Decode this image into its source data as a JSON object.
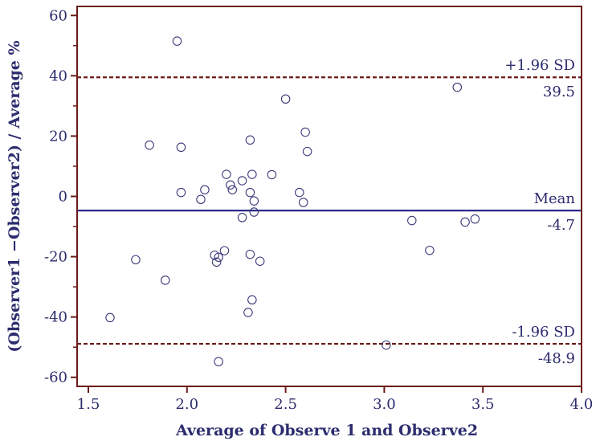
{
  "chart_data": {
    "type": "scatter",
    "title": "",
    "xlabel": "Average of Observe 1 and Observe2",
    "ylabel": "(Observer1 −Observer2)  / Average %",
    "xlim": [
      1.5,
      4.0
    ],
    "ylim": [
      -63,
      63
    ],
    "xticks": [
      "1.5",
      "2.0",
      "2.5",
      "3.0",
      "3.5",
      "4.0"
    ],
    "yticks": [
      "60",
      "40",
      "20",
      "0",
      "-20",
      "-40",
      "-60"
    ],
    "grid": false,
    "legend": "none",
    "colors": {
      "frame": "#6b1a1a",
      "mean_line": "#2a2a8a",
      "sd_line": "#6b1a1a",
      "point": "#3a3a7a",
      "text": "#2c2c6e"
    },
    "lines": [
      {
        "name": "+1.96 SD",
        "value": 39.5,
        "label_top": "+1.96 SD",
        "label_bottom": "39.5",
        "style": "dashed"
      },
      {
        "name": "Mean",
        "value": -4.7,
        "label_top": "Mean",
        "label_bottom": "-4.7",
        "style": "solid"
      },
      {
        "name": "-1.96 SD",
        "value": -48.9,
        "label_top": "-1.96 SD",
        "label_bottom": "-48.9",
        "style": "dashed"
      }
    ],
    "points": [
      {
        "x": 1.95,
        "y": 51.5
      },
      {
        "x": 1.81,
        "y": 17.0
      },
      {
        "x": 1.97,
        "y": 16.3
      },
      {
        "x": 1.97,
        "y": 1.3
      },
      {
        "x": 2.09,
        "y": 2.2
      },
      {
        "x": 2.07,
        "y": -1.0
      },
      {
        "x": 2.2,
        "y": 7.3
      },
      {
        "x": 2.22,
        "y": 3.8
      },
      {
        "x": 2.23,
        "y": 2.2
      },
      {
        "x": 2.28,
        "y": 5.2
      },
      {
        "x": 2.32,
        "y": 18.7
      },
      {
        "x": 2.33,
        "y": 7.3
      },
      {
        "x": 2.32,
        "y": 1.3
      },
      {
        "x": 2.34,
        "y": -1.5
      },
      {
        "x": 2.34,
        "y": -5.2
      },
      {
        "x": 2.28,
        "y": -7.0
      },
      {
        "x": 2.43,
        "y": 7.2
      },
      {
        "x": 2.5,
        "y": 32.3
      },
      {
        "x": 2.6,
        "y": 21.3
      },
      {
        "x": 2.61,
        "y": 14.9
      },
      {
        "x": 2.57,
        "y": 1.3
      },
      {
        "x": 2.59,
        "y": -2.0
      },
      {
        "x": 2.19,
        "y": -18.0
      },
      {
        "x": 2.14,
        "y": -19.5
      },
      {
        "x": 2.16,
        "y": -20.2
      },
      {
        "x": 2.15,
        "y": -21.8
      },
      {
        "x": 2.32,
        "y": -19.2
      },
      {
        "x": 2.37,
        "y": -21.5
      },
      {
        "x": 1.74,
        "y": -21.0
      },
      {
        "x": 1.89,
        "y": -27.8
      },
      {
        "x": 2.33,
        "y": -34.3
      },
      {
        "x": 2.31,
        "y": -38.5
      },
      {
        "x": 1.61,
        "y": -40.2
      },
      {
        "x": 2.16,
        "y": -54.8
      },
      {
        "x": 3.01,
        "y": -49.3
      },
      {
        "x": 3.14,
        "y": -8.0
      },
      {
        "x": 3.23,
        "y": -17.9
      },
      {
        "x": 3.37,
        "y": 36.2
      },
      {
        "x": 3.41,
        "y": -8.5
      },
      {
        "x": 3.46,
        "y": -7.5
      }
    ]
  }
}
